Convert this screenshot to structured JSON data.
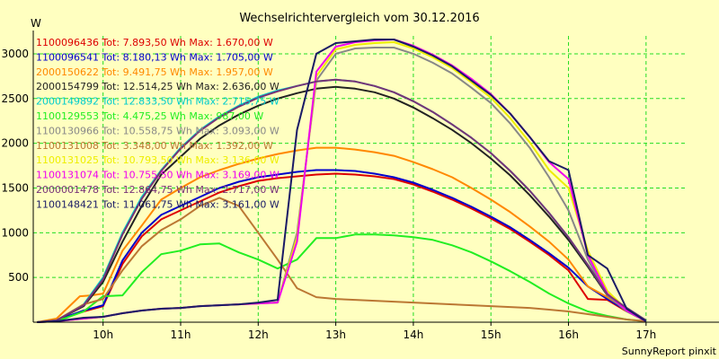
{
  "chart_data": {
    "type": "line",
    "title": "Wechselrichtervergleich vom 30.12.2016",
    "ylabel": "W",
    "footer": "SunnyReport pinxit",
    "ylim": [
      0,
      3200
    ],
    "xlim": [
      9.1,
      17.5
    ],
    "yticks": [
      500,
      1000,
      1500,
      2000,
      2500,
      3000
    ],
    "xticks": [
      10,
      11,
      12,
      13,
      14,
      15,
      16,
      17
    ],
    "xtick_labels": [
      "10h",
      "11h",
      "12h",
      "13h",
      "14h",
      "15h",
      "16h",
      "17h"
    ],
    "grid": true,
    "legend_position": "top-left",
    "colors": {
      "background": "#ffffc0",
      "plot_background": "#ffffc0",
      "grid": "#22dd22",
      "axis": "#000000"
    },
    "series": [
      {
        "name": "1100096436 Tot: 7.893,50 Wh Max: 1.670,00 W",
        "color": "#dd0000",
        "x": [
          9.15,
          9.4,
          9.75,
          10.0,
          10.25,
          10.5,
          10.75,
          11.0,
          11.25,
          11.5,
          11.75,
          12.0,
          12.25,
          12.5,
          12.75,
          13.0,
          13.25,
          13.5,
          13.75,
          14.0,
          14.25,
          14.5,
          14.75,
          15.0,
          15.25,
          15.5,
          15.75,
          16.0,
          16.25,
          16.5,
          16.75,
          17.0
        ],
        "y": [
          0,
          20,
          120,
          180,
          650,
          960,
          1150,
          1250,
          1350,
          1450,
          1520,
          1580,
          1610,
          1630,
          1650,
          1660,
          1650,
          1630,
          1600,
          1540,
          1460,
          1370,
          1270,
          1160,
          1040,
          900,
          750,
          580,
          260,
          250,
          120,
          20
        ]
      },
      {
        "name": "1100096541 Tot: 8.180,13 Wh Max: 1.705,00 W",
        "color": "#0000cc",
        "x": [
          9.15,
          9.4,
          9.75,
          10.0,
          10.25,
          10.5,
          10.75,
          11.0,
          11.25,
          11.5,
          11.75,
          12.0,
          12.25,
          12.5,
          12.75,
          13.0,
          13.25,
          13.5,
          13.75,
          14.0,
          14.25,
          14.5,
          14.75,
          15.0,
          15.25,
          15.5,
          15.75,
          16.0,
          16.25,
          16.5,
          16.75,
          17.0
        ],
        "y": [
          0,
          20,
          130,
          190,
          690,
          1000,
          1200,
          1300,
          1400,
          1500,
          1570,
          1620,
          1650,
          1680,
          1700,
          1700,
          1690,
          1660,
          1620,
          1560,
          1480,
          1390,
          1290,
          1180,
          1060,
          920,
          770,
          610,
          400,
          260,
          130,
          20
        ]
      },
      {
        "name": "2000150622 Tot: 9.491,75 Wh Max: 1.957,00 W",
        "color": "#ff8800",
        "x": [
          9.15,
          9.4,
          9.7,
          9.85,
          10.0,
          10.25,
          10.5,
          10.75,
          11.0,
          11.25,
          11.5,
          11.75,
          12.0,
          12.25,
          12.5,
          12.75,
          13.0,
          13.25,
          13.5,
          13.75,
          14.0,
          14.25,
          14.5,
          14.75,
          15.0,
          15.25,
          15.5,
          15.75,
          16.0,
          16.25,
          16.5,
          16.75,
          17.0
        ],
        "y": [
          0,
          40,
          290,
          300,
          320,
          800,
          1080,
          1370,
          1500,
          1620,
          1700,
          1770,
          1830,
          1880,
          1920,
          1950,
          1950,
          1930,
          1900,
          1860,
          1790,
          1710,
          1620,
          1500,
          1370,
          1230,
          1070,
          900,
          700,
          400,
          280,
          140,
          20
        ]
      },
      {
        "name": "2000154799 Tot: 12.514,25 Wh Max: 2.636,00 W",
        "color": "#222222",
        "x": [
          9.15,
          9.4,
          9.75,
          10.0,
          10.25,
          10.5,
          10.75,
          11.0,
          11.25,
          11.5,
          11.75,
          12.0,
          12.25,
          12.5,
          12.75,
          13.0,
          13.25,
          13.5,
          13.75,
          14.0,
          14.25,
          14.5,
          14.75,
          15.0,
          15.25,
          15.5,
          15.75,
          16.0,
          16.25,
          16.5,
          16.75,
          17.0
        ],
        "y": [
          0,
          20,
          180,
          450,
          900,
          1300,
          1650,
          1850,
          2050,
          2200,
          2320,
          2420,
          2500,
          2560,
          2610,
          2630,
          2610,
          2570,
          2500,
          2400,
          2280,
          2150,
          2000,
          1830,
          1640,
          1420,
          1180,
          920,
          620,
          300,
          150,
          20
        ]
      },
      {
        "name": "2000149892 Tot: 12.833,50 Wh Max: 2.715,75 W",
        "color": "#00cccc",
        "x": [
          9.15,
          9.4,
          9.75,
          10.0,
          10.25,
          10.5,
          10.75,
          11.0,
          11.25,
          11.5,
          11.75,
          12.0,
          12.25,
          12.5,
          12.75,
          13.0,
          13.25,
          13.5,
          13.75,
          14.0,
          14.25,
          14.5,
          14.75,
          15.0,
          15.25,
          15.5,
          15.75,
          16.0,
          16.25,
          16.5,
          16.75,
          17.0
        ],
        "y": [
          0,
          20,
          200,
          500,
          1000,
          1400,
          1700,
          1950,
          2150,
          2300,
          2420,
          2520,
          2590,
          2640,
          2690,
          2710,
          2690,
          2640,
          2570,
          2470,
          2350,
          2210,
          2060,
          1890,
          1690,
          1470,
          1220,
          950,
          640,
          310,
          160,
          20
        ]
      },
      {
        "name": "1100129553 Tot: 4.475,25 Wh Max: 987,00 W",
        "color": "#22ee22",
        "x": [
          9.15,
          9.4,
          9.75,
          10.0,
          10.25,
          10.5,
          10.75,
          11.0,
          11.25,
          11.5,
          11.75,
          12.0,
          12.25,
          12.5,
          12.75,
          13.0,
          13.25,
          13.5,
          13.75,
          14.0,
          14.25,
          14.5,
          14.75,
          15.0,
          15.25,
          15.5,
          15.75,
          16.0,
          16.25,
          16.5,
          16.75,
          17.0
        ],
        "y": [
          0,
          10,
          120,
          290,
          300,
          560,
          760,
          800,
          870,
          880,
          780,
          700,
          600,
          700,
          940,
          940,
          980,
          980,
          970,
          950,
          920,
          860,
          780,
          680,
          570,
          450,
          320,
          210,
          120,
          70,
          30,
          10
        ]
      },
      {
        "name": "1100130966 Tot: 10.558,75 Wh Max: 3.093,00 W",
        "color": "#888888",
        "x": [
          9.15,
          9.4,
          9.75,
          10.0,
          10.25,
          10.5,
          10.75,
          11.0,
          11.25,
          11.5,
          11.75,
          12.0,
          12.25,
          12.5,
          12.75,
          13.0,
          13.25,
          13.5,
          13.75,
          14.0,
          14.25,
          14.5,
          14.75,
          15.0,
          15.25,
          15.5,
          15.75,
          16.0,
          16.25,
          16.5,
          16.75,
          17.0
        ],
        "y": [
          0,
          10,
          40,
          60,
          100,
          130,
          150,
          160,
          180,
          190,
          200,
          210,
          220,
          1000,
          2700,
          3000,
          3060,
          3070,
          3070,
          3000,
          2900,
          2780,
          2620,
          2450,
          2220,
          1950,
          1620,
          1250,
          700,
          300,
          120,
          10
        ]
      },
      {
        "name": "1100131008 Tot: 3.348,00 Wh Max: 1.392,00 W",
        "color": "#bb7733",
        "x": [
          9.15,
          9.4,
          9.75,
          10.0,
          10.25,
          10.5,
          10.75,
          11.0,
          11.25,
          11.5,
          11.75,
          12.0,
          12.25,
          12.5,
          12.75,
          13.0,
          13.25,
          13.5,
          13.75,
          14.0,
          14.25,
          14.5,
          14.75,
          15.0,
          15.25,
          15.5,
          15.75,
          16.0,
          16.25,
          16.5,
          16.75,
          17.0
        ],
        "y": [
          0,
          20,
          200,
          260,
          580,
          850,
          1030,
          1150,
          1300,
          1390,
          1300,
          1000,
          700,
          380,
          280,
          260,
          250,
          240,
          230,
          220,
          210,
          200,
          190,
          180,
          170,
          160,
          140,
          120,
          90,
          60,
          30,
          10
        ]
      },
      {
        "name": "1100131025 Tot: 10.793,50 Wh Max: 3.136,00 W",
        "color": "#eeee00",
        "x": [
          9.15,
          9.4,
          9.75,
          10.0,
          10.25,
          10.5,
          10.75,
          11.0,
          11.25,
          11.5,
          11.75,
          12.0,
          12.25,
          12.5,
          12.75,
          13.0,
          13.25,
          13.5,
          13.75,
          14.0,
          14.25,
          14.5,
          14.75,
          15.0,
          15.25,
          15.5,
          15.75,
          16.0,
          16.25,
          16.5,
          16.75,
          17.0
        ],
        "y": [
          0,
          10,
          40,
          60,
          100,
          130,
          150,
          160,
          180,
          190,
          200,
          210,
          220,
          950,
          2750,
          3050,
          3100,
          3120,
          3130,
          3060,
          2960,
          2840,
          2680,
          2510,
          2280,
          2010,
          1700,
          1500,
          800,
          350,
          140,
          10
        ]
      },
      {
        "name": "1100131074 Tot: 10.755,50 Wh Max: 3.169,00 W",
        "color": "#ee00ee",
        "x": [
          9.15,
          9.4,
          9.75,
          10.0,
          10.25,
          10.5,
          10.75,
          11.0,
          11.25,
          11.5,
          11.75,
          12.0,
          12.25,
          12.5,
          12.75,
          13.0,
          13.25,
          13.5,
          13.75,
          14.0,
          14.25,
          14.5,
          14.75,
          15.0,
          15.25,
          15.5,
          15.75,
          16.0,
          16.25,
          16.5,
          16.75,
          17.0
        ],
        "y": [
          0,
          10,
          40,
          60,
          100,
          130,
          150,
          160,
          180,
          190,
          200,
          210,
          220,
          900,
          2800,
          3080,
          3130,
          3150,
          3160,
          3090,
          2990,
          2870,
          2720,
          2550,
          2330,
          2070,
          1790,
          1600,
          750,
          320,
          130,
          10
        ]
      },
      {
        "name": "2000001478 Tot: 12.864,75 Wh Max: 2.717,00 W",
        "color": "#773377",
        "x": [
          9.15,
          9.4,
          9.75,
          10.0,
          10.25,
          10.5,
          10.75,
          11.0,
          11.25,
          11.5,
          11.75,
          12.0,
          12.25,
          12.5,
          12.75,
          13.0,
          13.25,
          13.5,
          13.75,
          14.0,
          14.25,
          14.5,
          14.75,
          15.0,
          15.25,
          15.5,
          15.75,
          16.0,
          16.25,
          16.5,
          16.75,
          17.0
        ],
        "y": [
          0,
          20,
          190,
          480,
          980,
          1380,
          1690,
          1940,
          2140,
          2290,
          2410,
          2510,
          2580,
          2640,
          2690,
          2710,
          2690,
          2640,
          2570,
          2470,
          2350,
          2210,
          2060,
          1890,
          1690,
          1470,
          1220,
          950,
          640,
          310,
          160,
          20
        ]
      },
      {
        "name": "1100148421 Tot: 11.061,75 Wh Max: 3.161,00 W",
        "color": "#1a1a66",
        "x": [
          9.15,
          9.4,
          9.75,
          10.0,
          10.25,
          10.5,
          10.75,
          11.0,
          11.25,
          11.5,
          11.75,
          12.0,
          12.25,
          12.5,
          12.75,
          13.0,
          13.25,
          13.5,
          13.75,
          14.0,
          14.25,
          14.5,
          14.75,
          15.0,
          15.25,
          15.5,
          15.75,
          16.0,
          16.25,
          16.5,
          16.75,
          17.0
        ],
        "y": [
          0,
          10,
          50,
          60,
          100,
          130,
          150,
          160,
          180,
          190,
          200,
          220,
          250,
          2150,
          3000,
          3120,
          3140,
          3160,
          3160,
          3080,
          2980,
          2860,
          2700,
          2540,
          2330,
          2070,
          1800,
          1700,
          750,
          600,
          150,
          10
        ]
      }
    ]
  }
}
